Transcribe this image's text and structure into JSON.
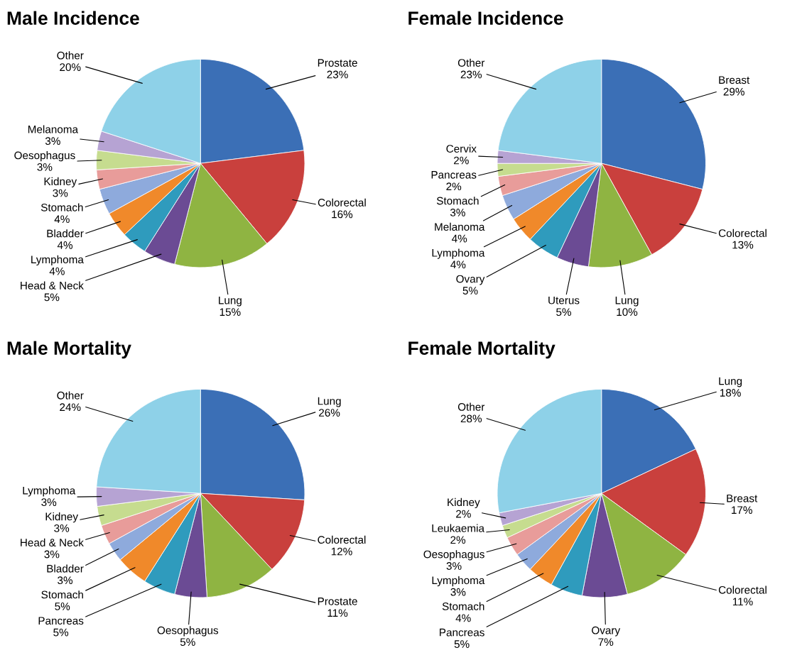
{
  "chart_data": [
    {
      "type": "pie",
      "title": "Male Incidence",
      "categories": [
        "Prostate",
        "Colorectal",
        "Lung",
        "Head & Neck",
        "Lymphoma",
        "Bladder",
        "Stomach",
        "Kidney",
        "Oesophagus",
        "Melanoma",
        "Other"
      ],
      "values": [
        23,
        16,
        15,
        5,
        4,
        4,
        4,
        3,
        3,
        3,
        20
      ],
      "value_labels": [
        "23%",
        "16%",
        "15%",
        "5%",
        "4%",
        "4%",
        "4%",
        "3%",
        "3%",
        "3%",
        "20%"
      ],
      "colors": [
        "#3b6fb6",
        "#c9403d",
        "#8fb442",
        "#6b4b94",
        "#2f9bbd",
        "#f0892a",
        "#8eaadc",
        "#e89c9a",
        "#c6dc8f",
        "#b6a3d3",
        "#8ed1e8"
      ]
    },
    {
      "type": "pie",
      "title": "Female Incidence",
      "categories": [
        "Breast",
        "Colorectal",
        "Lung",
        "Uterus",
        "Ovary",
        "Lymphoma",
        "Melanoma",
        "Stomach",
        "Pancreas",
        "Cervix",
        "Other"
      ],
      "values": [
        29,
        13,
        10,
        5,
        5,
        4,
        4,
        3,
        2,
        2,
        23
      ],
      "value_labels": [
        "29%",
        "13%",
        "10%",
        "5%",
        "5%",
        "4%",
        "4%",
        "3%",
        "2%",
        "2%",
        "23%"
      ],
      "colors": [
        "#3b6fb6",
        "#c9403d",
        "#8fb442",
        "#6b4b94",
        "#2f9bbd",
        "#f0892a",
        "#8eaadc",
        "#e89c9a",
        "#c6dc8f",
        "#b6a3d3",
        "#8ed1e8"
      ]
    },
    {
      "type": "pie",
      "title": "Male Mortality",
      "categories": [
        "Lung",
        "Colorectal",
        "Prostate",
        "Oesophagus",
        "Pancreas",
        "Stomach",
        "Bladder",
        "Head & Neck",
        "Kidney",
        "Lymphoma",
        "Other"
      ],
      "values": [
        26,
        12,
        11,
        5,
        5,
        5,
        3,
        3,
        3,
        3,
        24
      ],
      "value_labels": [
        "26%",
        "12%",
        "11%",
        "5%",
        "5%",
        "5%",
        "3%",
        "3%",
        "3%",
        "3%",
        "24%"
      ],
      "colors": [
        "#3b6fb6",
        "#c9403d",
        "#8fb442",
        "#6b4b94",
        "#2f9bbd",
        "#f0892a",
        "#8eaadc",
        "#e89c9a",
        "#c6dc8f",
        "#b6a3d3",
        "#8ed1e8"
      ]
    },
    {
      "type": "pie",
      "title": "Female Mortality",
      "categories": [
        "Lung",
        "Breast",
        "Colorectal",
        "Ovary",
        "Pancreas",
        "Stomach",
        "Lymphoma",
        "Oesophagus",
        "Leukaemia",
        "Kidney",
        "Other"
      ],
      "values": [
        18,
        17,
        11,
        7,
        5,
        4,
        3,
        3,
        2,
        2,
        28
      ],
      "value_labels": [
        "18%",
        "17%",
        "11%",
        "7%",
        "5%",
        "4%",
        "3%",
        "3%",
        "2%",
        "2%",
        "28%"
      ],
      "colors": [
        "#3b6fb6",
        "#c9403d",
        "#8fb442",
        "#6b4b94",
        "#2f9bbd",
        "#f0892a",
        "#8eaadc",
        "#e89c9a",
        "#c6dc8f",
        "#b6a3d3",
        "#8ed1e8"
      ]
    }
  ]
}
